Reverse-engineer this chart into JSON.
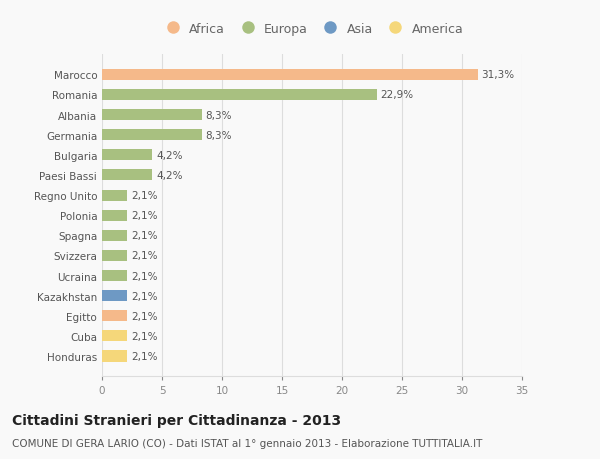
{
  "categories": [
    "Honduras",
    "Cuba",
    "Egitto",
    "Kazakhstan",
    "Ucraina",
    "Svizzera",
    "Spagna",
    "Polonia",
    "Regno Unito",
    "Paesi Bassi",
    "Bulgaria",
    "Germania",
    "Albania",
    "Romania",
    "Marocco"
  ],
  "values": [
    2.1,
    2.1,
    2.1,
    2.1,
    2.1,
    2.1,
    2.1,
    2.1,
    2.1,
    4.2,
    4.2,
    8.3,
    8.3,
    22.9,
    31.3
  ],
  "labels": [
    "2,1%",
    "2,1%",
    "2,1%",
    "2,1%",
    "2,1%",
    "2,1%",
    "2,1%",
    "2,1%",
    "2,1%",
    "4,2%",
    "4,2%",
    "8,3%",
    "8,3%",
    "22,9%",
    "31,3%"
  ],
  "colors": [
    "#f5d77a",
    "#f5d77a",
    "#f5b98a",
    "#6e99c4",
    "#a8c080",
    "#a8c080",
    "#a8c080",
    "#a8c080",
    "#a8c080",
    "#a8c080",
    "#a8c080",
    "#a8c080",
    "#a8c080",
    "#a8c080",
    "#f5b98a"
  ],
  "legend_labels": [
    "Africa",
    "Europa",
    "Asia",
    "America"
  ],
  "legend_colors": [
    "#f5b98a",
    "#a8c080",
    "#6e99c4",
    "#f5d77a"
  ],
  "title": "Cittadini Stranieri per Cittadinanza - 2013",
  "subtitle": "COMUNE DI GERA LARIO (CO) - Dati ISTAT al 1° gennaio 2013 - Elaborazione TUTTITALIA.IT",
  "xlim": [
    0,
    35
  ],
  "xticks": [
    0,
    5,
    10,
    15,
    20,
    25,
    30,
    35
  ],
  "background_color": "#f9f9f9",
  "grid_color": "#dddddd",
  "bar_height": 0.55,
  "title_fontsize": 10,
  "subtitle_fontsize": 7.5,
  "label_fontsize": 7.5,
  "tick_fontsize": 7.5,
  "legend_fontsize": 9
}
